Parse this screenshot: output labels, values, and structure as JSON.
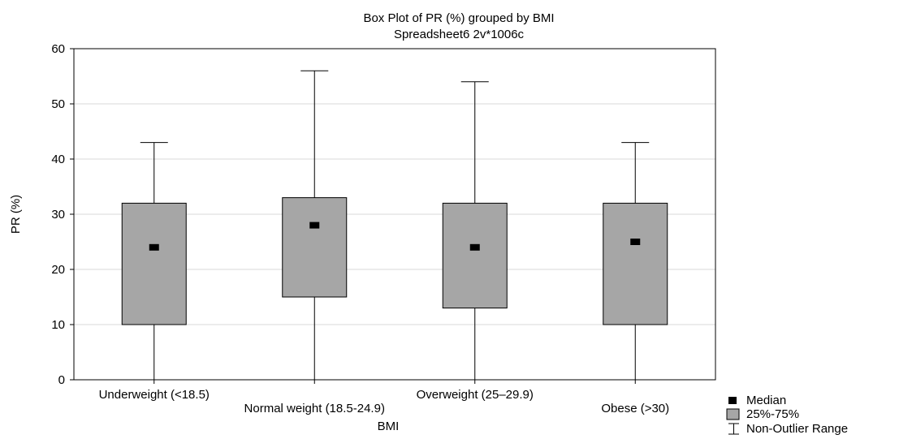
{
  "chart_data": {
    "type": "box",
    "title": "Box Plot of PR (%) grouped by  BMI",
    "subtitle": "Spreadsheet6 2v*1006c",
    "xlabel": "BMI",
    "ylabel": "PR (%)",
    "ylim": [
      0,
      60
    ],
    "yticks": [
      0,
      10,
      20,
      30,
      40,
      50,
      60
    ],
    "grid": true,
    "categories": [
      "Underweight (<18.5)",
      "Normal weight (18.5-24.9)",
      "Overweight (25–29.9)",
      "Obese  (>30)"
    ],
    "boxes": [
      {
        "min": 0,
        "q1": 10,
        "median": 24,
        "q3": 32,
        "max": 43
      },
      {
        "min": 0,
        "q1": 15,
        "median": 28,
        "q3": 33,
        "max": 56
      },
      {
        "min": 0,
        "q1": 13,
        "median": 24,
        "q3": 32,
        "max": 54
      },
      {
        "min": 0,
        "q1": 10,
        "median": 25,
        "q3": 32,
        "max": 43
      }
    ],
    "legend": {
      "position": "bottom-right",
      "items": [
        "Median",
        "25%-75%",
        "Non-Outlier Range"
      ]
    },
    "colors": {
      "box_fill": "#a6a6a6",
      "grid": "#d9d9d9",
      "line": "#000000"
    }
  }
}
